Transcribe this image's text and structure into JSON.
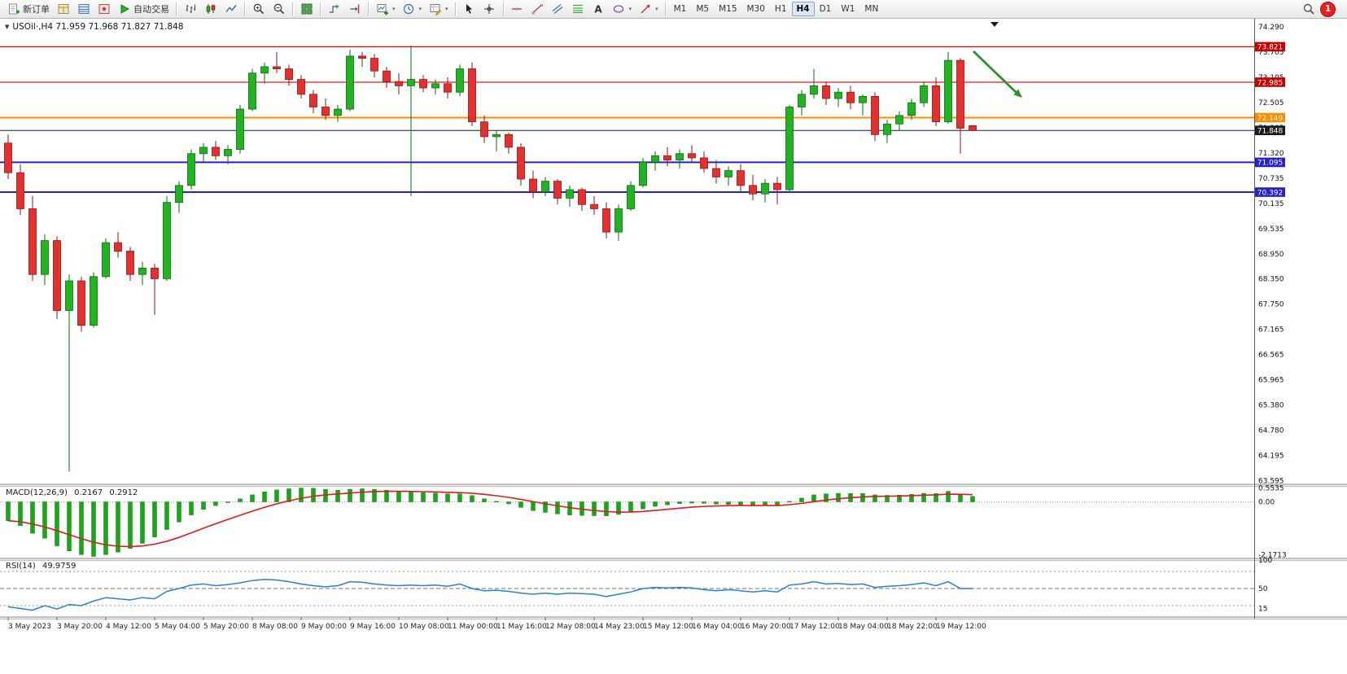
{
  "toolbar": {
    "items": [
      {
        "name": "new-order-button",
        "type": "button",
        "icon": "new-order-icon",
        "label": "新订单"
      },
      {
        "name": "market-depth-button",
        "type": "icon",
        "icon": "market-depth-icon"
      },
      {
        "name": "data-window-button",
        "type": "icon",
        "icon": "data-window-icon"
      },
      {
        "name": "alerts-button",
        "type": "icon",
        "icon": "alerts-icon"
      },
      {
        "name": "algo-trading-button",
        "type": "button",
        "icon": "algo-trading-icon",
        "label": "自动交易"
      },
      {
        "type": "sep"
      },
      {
        "name": "bar-chart-button",
        "type": "icon",
        "icon": "bar-chart-icon"
      },
      {
        "name": "candlestick-chart-button",
        "type": "icon",
        "icon": "candlestick-icon"
      },
      {
        "name": "line-chart-button",
        "type": "icon",
        "icon": "line-chart-icon"
      },
      {
        "type": "sep"
      },
      {
        "name": "zoom-in-button",
        "type": "icon",
        "icon": "zoom-in-icon"
      },
      {
        "name": "zoom-out-button",
        "type": "icon",
        "icon": "zoom-out-icon"
      },
      {
        "type": "sep"
      },
      {
        "name": "tile-windows-button",
        "type": "icon",
        "icon": "tile-windows-icon"
      },
      {
        "type": "sep"
      },
      {
        "name": "auto-scroll-button",
        "type": "icon",
        "icon": "auto-scroll-icon"
      },
      {
        "name": "chart-shift-button",
        "type": "icon",
        "icon": "chart-shift-icon"
      },
      {
        "type": "sep"
      },
      {
        "name": "new-chart-button",
        "type": "icon",
        "icon": "new-chart-icon",
        "caret": true
      },
      {
        "name": "period-selector-button",
        "type": "icon",
        "icon": "clock-icon",
        "caret": true
      },
      {
        "name": "objects-button",
        "type": "icon",
        "icon": "objects-icon",
        "caret": true
      },
      {
        "type": "sep"
      },
      {
        "name": "cursor-button",
        "type": "icon",
        "icon": "cursor-icon"
      },
      {
        "name": "crosshair-button",
        "type": "icon",
        "icon": "crosshair-icon"
      },
      {
        "type": "sep"
      },
      {
        "name": "hline-tool-button",
        "type": "icon",
        "icon": "hline-icon"
      },
      {
        "name": "trendline-tool-button",
        "type": "icon",
        "icon": "trendline-icon"
      },
      {
        "name": "channel-tool-button",
        "type": "icon",
        "icon": "channel-icon"
      },
      {
        "name": "fibonacci-tool-button",
        "type": "icon",
        "icon": "fibonacci-icon"
      },
      {
        "name": "text-tool-button",
        "type": "icon",
        "icon": "text-icon"
      },
      {
        "name": "shapes-tool-button",
        "type": "icon",
        "icon": "shapes-icon",
        "caret": true
      },
      {
        "name": "arrows-tool-button",
        "type": "icon",
        "icon": "arrow-tool-icon",
        "caret": true
      },
      {
        "type": "sep"
      }
    ],
    "timeframes": [
      "M1",
      "M5",
      "M15",
      "M30",
      "H1",
      "H4",
      "D1",
      "W1",
      "MN"
    ],
    "active_timeframe": "H4",
    "notification_count": "1"
  },
  "chart": {
    "title": "USOil·,H4 71.959 71.968 71.827 71.848"
  },
  "price_axis": {
    "labels": [
      "74.290",
      "73.705",
      "73.105",
      "72.505",
      "71.905",
      "71.320",
      "70.735",
      "70.135",
      "69.535",
      "68.950",
      "68.350",
      "67.750",
      "67.165",
      "66.565",
      "65.965",
      "65.380",
      "64.780",
      "64.195",
      "63.595"
    ]
  },
  "levels": [
    {
      "price": 73.821,
      "label": "73.821",
      "line_color": "#d21616",
      "badge_color": "#c40000",
      "width": 1.3
    },
    {
      "price": 72.985,
      "label": "72.985",
      "line_color": "#e81b1b",
      "badge_color": "#c40000",
      "width": 1.3
    },
    {
      "price": 72.149,
      "label": "72.149",
      "line_color": "#ff8c00",
      "badge_color": "#ff8c00",
      "width": 2
    },
    {
      "price": 71.848,
      "label": "71.848",
      "line_color": "#1a1a1a",
      "badge_color": "#1a1a1a",
      "width": 1
    },
    {
      "price": 71.095,
      "label": "71.095",
      "line_color": "#2121d8",
      "badge_color": "#2323c8",
      "width": 2
    },
    {
      "price": 70.392,
      "label": "70.392",
      "line_color": "#2121d8",
      "badge_color": "#2323c8",
      "width": 2
    }
  ],
  "macd": {
    "label": "MACD(12,26,9)",
    "value_main": "0.2167",
    "value_signal": "0.2912",
    "axis_labels": [
      "0.5535",
      "0.00",
      "-2.1713"
    ],
    "axis_values": [
      0.5535,
      0,
      -2.1713
    ]
  },
  "rsi": {
    "label": "RSI(14)",
    "value": "49.9759",
    "axis_labels": [
      "100",
      "50",
      "15"
    ],
    "axis_values": [
      100,
      50,
      15
    ],
    "level_lines": [
      80,
      50,
      20
    ]
  },
  "time_axis": {
    "labels": [
      "3 May 2023",
      "3 May 20:00",
      "4 May 12:00",
      "5 May 04:00",
      "5 May 20:00",
      "8 May 08:00",
      "9 May 00:00",
      "9 May 16:00",
      "10 May 08:00",
      "11 May 00:00",
      "11 May 16:00",
      "12 May 08:00",
      "14 May 23:00",
      "15 May 12:00",
      "16 May 04:00",
      "16 May 20:00",
      "17 May 12:00",
      "18 May 04:00",
      "18 May 22:00",
      "19 May 12:00"
    ]
  },
  "annotation": {
    "name": "trend-arrow",
    "color": "#2e8f2e",
    "from": [
      1196,
      63
    ],
    "to": [
      1256,
      120
    ]
  },
  "colors": {
    "background": "#ffffff",
    "candle_up": "#22b322",
    "candle_up_border": "#0c6e0c",
    "candle_down": "#e53030",
    "candle_down_border": "#941414",
    "macd_histogram": "#17a817",
    "macd_signal": "#e01b1b",
    "rsi_line": "#2f7ed8",
    "axis_text": "#111111"
  },
  "chart_data": {
    "type": "candlestick",
    "symbol": "USOil",
    "timeframe": "H4",
    "y_range": [
      63.595,
      74.29
    ],
    "candles": [
      [
        71.55,
        71.75,
        70.7,
        70.85
      ],
      [
        70.85,
        71.05,
        69.85,
        70.0
      ],
      [
        70.0,
        70.3,
        68.3,
        68.45
      ],
      [
        68.45,
        69.4,
        68.2,
        69.25
      ],
      [
        69.25,
        69.35,
        67.4,
        67.6
      ],
      [
        67.6,
        68.45,
        63.8,
        68.3
      ],
      [
        68.3,
        68.4,
        67.1,
        67.25
      ],
      [
        67.25,
        68.5,
        67.2,
        68.4
      ],
      [
        68.4,
        69.3,
        68.35,
        69.2
      ],
      [
        69.2,
        69.45,
        68.85,
        69.0
      ],
      [
        69.0,
        69.1,
        68.3,
        68.45
      ],
      [
        68.45,
        68.75,
        68.2,
        68.6
      ],
      [
        68.6,
        68.7,
        67.5,
        68.35
      ],
      [
        68.35,
        70.3,
        68.3,
        70.15
      ],
      [
        70.15,
        70.65,
        69.9,
        70.55
      ],
      [
        70.55,
        71.4,
        70.45,
        71.3
      ],
      [
        71.3,
        71.55,
        71.1,
        71.45
      ],
      [
        71.45,
        71.6,
        71.15,
        71.25
      ],
      [
        71.25,
        71.5,
        71.05,
        71.4
      ],
      [
        71.4,
        72.45,
        71.3,
        72.35
      ],
      [
        72.35,
        73.3,
        72.3,
        73.2
      ],
      [
        73.2,
        73.45,
        72.95,
        73.35
      ],
      [
        73.35,
        73.7,
        73.2,
        73.3
      ],
      [
        73.3,
        73.4,
        72.9,
        73.05
      ],
      [
        73.05,
        73.15,
        72.6,
        72.7
      ],
      [
        72.7,
        72.8,
        72.25,
        72.4
      ],
      [
        72.4,
        72.6,
        72.1,
        72.2
      ],
      [
        72.2,
        72.45,
        72.05,
        72.35
      ],
      [
        72.35,
        73.75,
        72.3,
        73.6
      ],
      [
        73.6,
        73.7,
        73.35,
        73.55
      ],
      [
        73.55,
        73.65,
        73.1,
        73.25
      ],
      [
        73.25,
        73.35,
        72.85,
        73.0
      ],
      [
        73.0,
        73.2,
        72.7,
        72.9
      ],
      [
        72.9,
        73.85,
        70.3,
        73.05
      ],
      [
        73.05,
        73.15,
        72.75,
        72.85
      ],
      [
        72.85,
        73.05,
        72.7,
        72.95
      ],
      [
        72.95,
        73.1,
        72.6,
        72.75
      ],
      [
        72.75,
        73.4,
        72.65,
        73.3
      ],
      [
        73.3,
        73.45,
        71.95,
        72.05
      ],
      [
        72.05,
        72.2,
        71.55,
        71.7
      ],
      [
        71.7,
        71.85,
        71.35,
        71.75
      ],
      [
        71.75,
        71.8,
        71.3,
        71.45
      ],
      [
        71.45,
        71.55,
        70.55,
        70.7
      ],
      [
        70.7,
        70.9,
        70.25,
        70.4
      ],
      [
        70.4,
        70.75,
        70.3,
        70.65
      ],
      [
        70.65,
        70.7,
        70.1,
        70.25
      ],
      [
        70.25,
        70.55,
        70.05,
        70.45
      ],
      [
        70.45,
        70.5,
        69.95,
        70.1
      ],
      [
        70.1,
        70.3,
        69.85,
        70.0
      ],
      [
        70.0,
        70.15,
        69.3,
        69.45
      ],
      [
        69.45,
        70.1,
        69.25,
        70.0
      ],
      [
        70.0,
        70.65,
        69.95,
        70.55
      ],
      [
        70.55,
        71.2,
        70.5,
        71.1
      ],
      [
        71.1,
        71.35,
        70.9,
        71.25
      ],
      [
        71.25,
        71.45,
        71.0,
        71.15
      ],
      [
        71.15,
        71.4,
        70.95,
        71.3
      ],
      [
        71.3,
        71.5,
        71.1,
        71.2
      ],
      [
        71.2,
        71.35,
        70.85,
        70.95
      ],
      [
        70.95,
        71.15,
        70.6,
        70.75
      ],
      [
        70.75,
        71.0,
        70.55,
        70.9
      ],
      [
        70.9,
        71.05,
        70.4,
        70.55
      ],
      [
        70.55,
        70.8,
        70.2,
        70.35
      ],
      [
        70.35,
        70.7,
        70.15,
        70.6
      ],
      [
        70.6,
        70.75,
        70.1,
        70.45
      ],
      [
        70.45,
        72.45,
        70.4,
        72.4
      ],
      [
        72.4,
        72.8,
        72.2,
        72.7
      ],
      [
        72.7,
        73.3,
        72.6,
        72.9
      ],
      [
        72.9,
        73.0,
        72.45,
        72.6
      ],
      [
        72.6,
        72.85,
        72.4,
        72.75
      ],
      [
        72.75,
        72.9,
        72.35,
        72.5
      ],
      [
        72.5,
        72.7,
        72.2,
        72.65
      ],
      [
        72.65,
        72.75,
        71.6,
        71.75
      ],
      [
        71.75,
        72.1,
        71.55,
        72.0
      ],
      [
        72.0,
        72.3,
        71.85,
        72.2
      ],
      [
        72.2,
        72.6,
        72.1,
        72.5
      ],
      [
        72.5,
        73.0,
        72.4,
        72.9
      ],
      [
        72.9,
        73.1,
        71.95,
        72.05
      ],
      [
        72.05,
        73.7,
        72.0,
        73.5
      ],
      [
        73.5,
        73.55,
        71.3,
        71.9
      ],
      [
        71.959,
        71.968,
        71.827,
        71.848
      ]
    ],
    "macd_histogram": [
      -0.75,
      -0.95,
      -1.25,
      -1.45,
      -1.75,
      -1.95,
      -2.1,
      -2.17,
      -2.1,
      -2.0,
      -1.85,
      -1.65,
      -1.4,
      -1.1,
      -0.8,
      -0.52,
      -0.3,
      -0.15,
      -0.02,
      0.12,
      0.28,
      0.4,
      0.48,
      0.52,
      0.55,
      0.54,
      0.5,
      0.46,
      0.5,
      0.52,
      0.5,
      0.46,
      0.42,
      0.4,
      0.37,
      0.35,
      0.32,
      0.32,
      0.25,
      0.12,
      0.02,
      -0.08,
      -0.22,
      -0.35,
      -0.42,
      -0.48,
      -0.52,
      -0.54,
      -0.55,
      -0.56,
      -0.5,
      -0.4,
      -0.28,
      -0.18,
      -0.12,
      -0.07,
      -0.05,
      -0.06,
      -0.09,
      -0.1,
      -0.12,
      -0.15,
      -0.14,
      -0.15,
      0.02,
      0.15,
      0.28,
      0.32,
      0.34,
      0.33,
      0.33,
      0.28,
      0.26,
      0.27,
      0.3,
      0.34,
      0.33,
      0.42,
      0.28,
      0.2167
    ],
    "rsi_values": [
      18,
      15,
      12,
      20,
      14,
      22,
      20,
      28,
      34,
      32,
      30,
      34,
      32,
      45,
      50,
      56,
      58,
      55,
      57,
      60,
      64,
      66,
      65,
      62,
      58,
      55,
      53,
      55,
      62,
      61,
      58,
      56,
      55,
      56,
      55,
      56,
      54,
      58,
      50,
      46,
      47,
      45,
      42,
      40,
      42,
      40,
      42,
      41,
      40,
      36,
      40,
      44,
      50,
      52,
      51,
      52,
      51,
      48,
      46,
      48,
      46,
      44,
      46,
      44,
      56,
      58,
      62,
      58,
      59,
      57,
      58,
      52,
      54,
      55,
      57,
      60,
      55,
      62,
      50,
      49.98
    ]
  }
}
